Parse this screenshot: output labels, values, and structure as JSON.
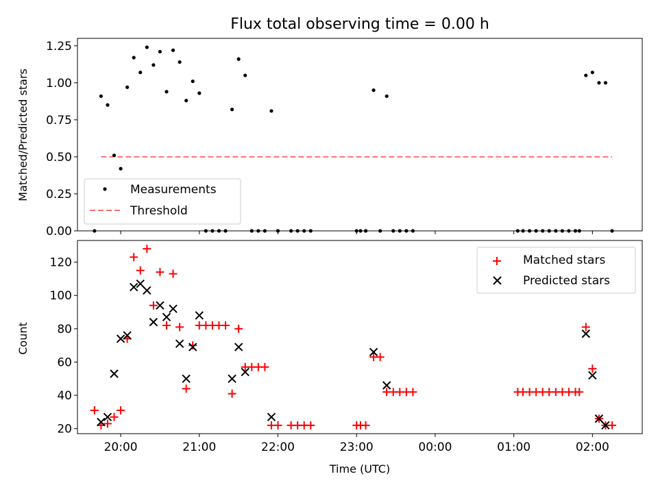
{
  "chart_data": [
    {
      "type": "scatter",
      "title": "Flux total observing time = 0.00 h",
      "xlabel": "",
      "ylabel": "Matched/Predicted stars",
      "xlim": [
        "19:27",
        "02:38"
      ],
      "ylim": [
        0,
        1.3
      ],
      "x_axis_type": "time",
      "yticks": [
        "0.00",
        "0.25",
        "0.50",
        "0.75",
        "1.00",
        "1.25"
      ],
      "grid": false,
      "legend": {
        "placement": "lower-left",
        "entries": [
          "Measurements",
          "Threshold"
        ]
      },
      "series": [
        {
          "name": "Measurements",
          "marker": "dot",
          "color": "#000000",
          "points": [
            [
              "19:40",
              0
            ],
            [
              "19:45",
              0.91
            ],
            [
              "19:50",
              0.85
            ],
            [
              "19:55",
              0.51
            ],
            [
              "20:00",
              0.42
            ],
            [
              "20:05",
              0.97
            ],
            [
              "20:10",
              1.17
            ],
            [
              "20:15",
              1.07
            ],
            [
              "20:20",
              1.24
            ],
            [
              "20:25",
              1.12
            ],
            [
              "20:30",
              1.21
            ],
            [
              "20:35",
              0.94
            ],
            [
              "20:40",
              1.22
            ],
            [
              "20:45",
              1.14
            ],
            [
              "20:50",
              0.88
            ],
            [
              "20:55",
              1.01
            ],
            [
              "21:00",
              0.93
            ],
            [
              "21:05",
              0
            ],
            [
              "21:10",
              0
            ],
            [
              "21:15",
              0
            ],
            [
              "21:20",
              0
            ],
            [
              "21:25",
              0.82
            ],
            [
              "21:30",
              1.16
            ],
            [
              "21:35",
              1.05
            ],
            [
              "21:40",
              0
            ],
            [
              "21:45",
              0
            ],
            [
              "21:50",
              0
            ],
            [
              "21:55",
              0.81
            ],
            [
              "22:00",
              0
            ],
            [
              "22:10",
              0
            ],
            [
              "22:15",
              0
            ],
            [
              "22:20",
              0
            ],
            [
              "22:25",
              0
            ],
            [
              "23:00",
              0
            ],
            [
              "23:03",
              0
            ],
            [
              "23:07",
              0
            ],
            [
              "23:13",
              0.95
            ],
            [
              "23:18",
              0
            ],
            [
              "23:23",
              0.91
            ],
            [
              "23:28",
              0
            ],
            [
              "23:33",
              0
            ],
            [
              "23:38",
              0
            ],
            [
              "23:43",
              0
            ],
            [
              "01:03",
              0
            ],
            [
              "01:07",
              0
            ],
            [
              "01:12",
              0
            ],
            [
              "01:17",
              0
            ],
            [
              "01:22",
              0
            ],
            [
              "01:27",
              0
            ],
            [
              "01:32",
              0
            ],
            [
              "01:37",
              0
            ],
            [
              "01:42",
              0
            ],
            [
              "01:47",
              0
            ],
            [
              "01:50",
              0
            ],
            [
              "01:55",
              1.05
            ],
            [
              "02:00",
              1.07
            ],
            [
              "02:05",
              1.0
            ],
            [
              "02:10",
              1.0
            ],
            [
              "02:15",
              0
            ]
          ]
        },
        {
          "name": "Threshold",
          "style": "dashed-line",
          "color": "#ff7070",
          "points": [
            [
              "19:45",
              0.5
            ],
            [
              "02:15",
              0.5
            ]
          ]
        }
      ]
    },
    {
      "type": "scatter",
      "title": "",
      "xlabel": "Time (UTC)",
      "ylabel": "Count",
      "xlim": [
        "19:27",
        "02:38"
      ],
      "ylim": [
        17,
        133
      ],
      "x_axis_type": "time",
      "xticks": [
        "20:00",
        "21:00",
        "22:00",
        "23:00",
        "00:00",
        "01:00",
        "02:00"
      ],
      "yticks": [
        "20",
        "40",
        "60",
        "80",
        "100",
        "120"
      ],
      "grid": false,
      "legend": {
        "placement": "upper-right",
        "entries": [
          "Matched stars",
          "Predicted stars"
        ]
      },
      "series": [
        {
          "name": "Matched stars",
          "marker": "plus",
          "color": "#ff0000",
          "points": [
            [
              "19:40",
              31
            ],
            [
              "19:45",
              22
            ],
            [
              "19:50",
              23
            ],
            [
              "19:55",
              27
            ],
            [
              "20:00",
              31
            ],
            [
              "20:05",
              74
            ],
            [
              "20:10",
              123
            ],
            [
              "20:15",
              115
            ],
            [
              "20:20",
              128
            ],
            [
              "20:25",
              94
            ],
            [
              "20:30",
              114
            ],
            [
              "20:35",
              82
            ],
            [
              "20:40",
              113
            ],
            [
              "20:45",
              81
            ],
            [
              "20:50",
              44
            ],
            [
              "20:55",
              70
            ],
            [
              "21:00",
              82
            ],
            [
              "21:05",
              82
            ],
            [
              "21:10",
              82
            ],
            [
              "21:15",
              82
            ],
            [
              "21:20",
              82
            ],
            [
              "21:25",
              41
            ],
            [
              "21:30",
              80
            ],
            [
              "21:35",
              57
            ],
            [
              "21:40",
              57
            ],
            [
              "21:45",
              57
            ],
            [
              "21:50",
              57
            ],
            [
              "21:55",
              22
            ],
            [
              "22:00",
              22
            ],
            [
              "22:10",
              22
            ],
            [
              "22:15",
              22
            ],
            [
              "22:20",
              22
            ],
            [
              "22:25",
              22
            ],
            [
              "23:00",
              22
            ],
            [
              "23:03",
              22
            ],
            [
              "23:07",
              22
            ],
            [
              "23:13",
              63
            ],
            [
              "23:18",
              63
            ],
            [
              "23:23",
              42
            ],
            [
              "23:28",
              42
            ],
            [
              "23:33",
              42
            ],
            [
              "23:38",
              42
            ],
            [
              "23:43",
              42
            ],
            [
              "01:03",
              42
            ],
            [
              "01:07",
              42
            ],
            [
              "01:12",
              42
            ],
            [
              "01:17",
              42
            ],
            [
              "01:22",
              42
            ],
            [
              "01:27",
              42
            ],
            [
              "01:32",
              42
            ],
            [
              "01:37",
              42
            ],
            [
              "01:42",
              42
            ],
            [
              "01:47",
              42
            ],
            [
              "01:50",
              42
            ],
            [
              "01:55",
              81
            ],
            [
              "02:00",
              56
            ],
            [
              "02:05",
              26
            ],
            [
              "02:10",
              22
            ],
            [
              "02:15",
              22
            ]
          ]
        },
        {
          "name": "Predicted stars",
          "marker": "x",
          "color": "#000000",
          "points": [
            [
              "19:45",
              24
            ],
            [
              "19:50",
              27
            ],
            [
              "19:55",
              53
            ],
            [
              "20:00",
              74
            ],
            [
              "20:05",
              76
            ],
            [
              "20:10",
              105
            ],
            [
              "20:15",
              107
            ],
            [
              "20:20",
              103
            ],
            [
              "20:25",
              84
            ],
            [
              "20:30",
              94
            ],
            [
              "20:35",
              87
            ],
            [
              "20:40",
              92
            ],
            [
              "20:45",
              71
            ],
            [
              "20:50",
              50
            ],
            [
              "20:55",
              69
            ],
            [
              "21:00",
              88
            ],
            [
              "21:25",
              50
            ],
            [
              "21:30",
              69
            ],
            [
              "21:35",
              54
            ],
            [
              "21:55",
              27
            ],
            [
              "23:13",
              66
            ],
            [
              "23:23",
              46
            ],
            [
              "01:55",
              77
            ],
            [
              "02:00",
              52
            ],
            [
              "02:05",
              26
            ],
            [
              "02:10",
              22
            ]
          ]
        }
      ]
    }
  ]
}
